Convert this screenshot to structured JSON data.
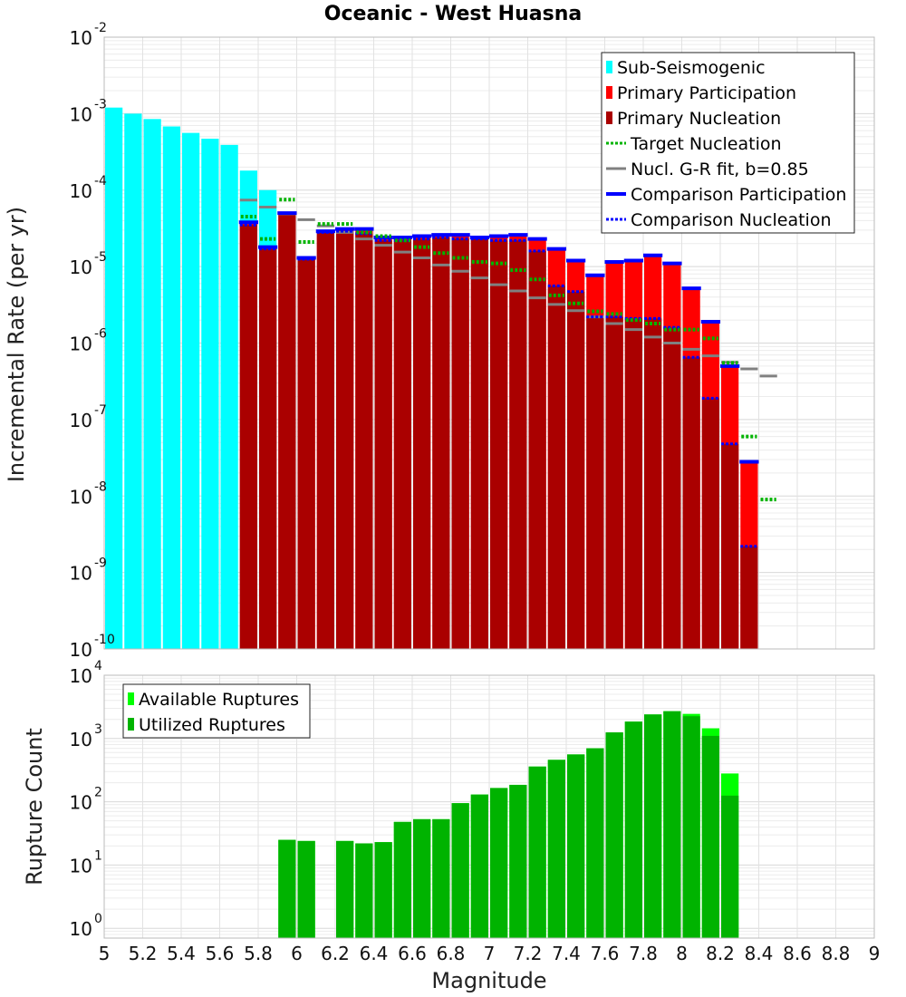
{
  "chart_data": [
    {
      "type": "bar",
      "title": "Oceanic - West Huasna",
      "xlabel": "",
      "ylabel": "Incremental Rate (per yr)",
      "xlim": [
        5,
        9
      ],
      "ylim": [
        1e-10,
        0.01
      ],
      "y_scale": "log",
      "y_ticks": [
        {
          "base": "10",
          "exp": "-10"
        },
        {
          "base": "10",
          "exp": "-9"
        },
        {
          "base": "10",
          "exp": "-8"
        },
        {
          "base": "10",
          "exp": "-7"
        },
        {
          "base": "10",
          "exp": "-6"
        },
        {
          "base": "10",
          "exp": "-5"
        },
        {
          "base": "10",
          "exp": "-4"
        },
        {
          "base": "10",
          "exp": "-3"
        },
        {
          "base": "10",
          "exp": "-2"
        }
      ],
      "legend": {
        "position": "top-right",
        "entries": [
          {
            "label": "Sub-Seismogenic",
            "color": "#00ffff",
            "style": "box"
          },
          {
            "label": "Primary Participation",
            "color": "#ff0000",
            "style": "box"
          },
          {
            "label": "Primary Nucleation",
            "color": "#aa0000",
            "style": "box"
          },
          {
            "label": "Target Nucleation",
            "color": "#00b300",
            "style": "dotted"
          },
          {
            "label": "Nucl. G-R fit, b=0.85",
            "color": "#808080",
            "style": "solid"
          },
          {
            "label": "Comparison Participation",
            "color": "#0000ff",
            "style": "solid-thick"
          },
          {
            "label": "Comparison Nucleation",
            "color": "#0000ff",
            "style": "dotted"
          }
        ]
      },
      "series": [
        {
          "name": "Sub-Seismogenic",
          "color": "#00ffff",
          "x": [
            5.05,
            5.15,
            5.25,
            5.35,
            5.45,
            5.55,
            5.65,
            5.75,
            5.85
          ],
          "values": [
            0.0012,
            0.001,
            0.00085,
            0.00068,
            0.00056,
            0.00047,
            0.00039,
            0.00018,
            0.0001
          ]
        },
        {
          "name": "Primary Participation",
          "color": "#ff0000",
          "x": [
            5.75,
            5.85,
            5.95,
            6.05,
            6.15,
            6.25,
            6.35,
            6.45,
            6.55,
            6.65,
            6.75,
            6.85,
            6.95,
            7.05,
            7.15,
            7.25,
            7.35,
            7.45,
            7.55,
            7.65,
            7.75,
            7.85,
            7.95,
            8.05,
            8.15,
            8.25,
            8.35
          ],
          "values": [
            3.8e-05,
            1.8e-05,
            5e-05,
            1.3e-05,
            2.9e-05,
            3.1e-05,
            3.1e-05,
            2.4e-05,
            2.4e-05,
            2.5e-05,
            2.6e-05,
            2.6e-05,
            2.4e-05,
            2.5e-05,
            2.6e-05,
            2.3e-05,
            1.7e-05,
            1.2e-05,
            7.7e-06,
            1.15e-05,
            1.2e-05,
            1.4e-05,
            1.1e-05,
            5.2e-06,
            1.9e-06,
            5e-07,
            2.8e-08
          ]
        },
        {
          "name": "Primary Nucleation",
          "color": "#aa0000",
          "x": [
            5.75,
            5.85,
            5.95,
            6.05,
            6.15,
            6.25,
            6.35,
            6.45,
            6.55,
            6.65,
            6.75,
            6.85,
            6.95,
            7.05,
            7.15,
            7.25,
            7.35,
            7.45,
            7.55,
            7.65,
            7.75,
            7.85,
            7.95,
            8.05,
            8.15,
            8.25,
            8.35
          ],
          "values": [
            3.5e-05,
            1.7e-05,
            5e-05,
            1.25e-05,
            2.8e-05,
            2.9e-05,
            2.7e-05,
            2.2e-05,
            2.2e-05,
            2.3e-05,
            2.4e-05,
            2.3e-05,
            2.3e-05,
            2.2e-05,
            2.2e-05,
            1.6e-05,
            5.6e-06,
            4.7e-06,
            2.2e-06,
            2.2e-06,
            2.1e-06,
            2.1e-06,
            1.6e-06,
            6.5e-07,
            1.9e-07,
            4.8e-08,
            2.2e-09
          ]
        },
        {
          "name": "Target Nucleation",
          "color": "#00b300",
          "x": [
            5.75,
            5.85,
            5.95,
            6.05,
            6.15,
            6.25,
            6.35,
            6.45,
            6.55,
            6.65,
            6.75,
            6.85,
            6.95,
            7.05,
            7.15,
            7.25,
            7.35,
            7.45,
            7.55,
            7.65,
            7.75,
            7.85,
            7.95,
            8.05,
            8.15,
            8.25,
            8.35,
            8.45
          ],
          "values": [
            4.5e-05,
            2.3e-05,
            7.5e-05,
            2.1e-05,
            3.6e-05,
            3.6e-05,
            2.8e-05,
            2.5e-05,
            2.2e-05,
            1.8e-05,
            1.5e-05,
            1.3e-05,
            1.15e-05,
            1.1e-05,
            9e-06,
            6.8e-06,
            4.2e-06,
            3.3e-06,
            2.6e-06,
            2.4e-06,
            2e-06,
            1.8e-06,
            1.5e-06,
            1.5e-06,
            1.15e-06,
            5.5e-07,
            6e-08,
            9e-09
          ]
        },
        {
          "name": "Nucl. G-R fit, b=0.85",
          "color": "#808080",
          "x": [
            5.75,
            5.85,
            5.95,
            6.05,
            6.15,
            6.25,
            6.35,
            6.45,
            6.55,
            6.65,
            6.75,
            6.85,
            6.95,
            7.05,
            7.15,
            7.25,
            7.35,
            7.45,
            7.55,
            7.65,
            7.75,
            7.85,
            7.95,
            8.05,
            8.15,
            8.25,
            8.35,
            8.45
          ],
          "values": [
            7.4e-05,
            6e-05,
            4.9e-05,
            4.1e-05,
            3.4e-05,
            2.8e-05,
            2.3e-05,
            1.9e-05,
            1.55e-05,
            1.3e-05,
            1.05e-05,
            8.7e-06,
            7.1e-06,
            5.8e-06,
            4.8e-06,
            3.9e-06,
            3.2e-06,
            2.65e-06,
            2.2e-06,
            1.8e-06,
            1.5e-06,
            1.2e-06,
            1e-06,
            8.3e-07,
            6.8e-07,
            5.6e-07,
            4.6e-07,
            3.7e-07
          ]
        },
        {
          "name": "Comparison Participation",
          "color": "#0000ff",
          "x": [
            5.75,
            5.85,
            5.95,
            6.05,
            6.15,
            6.25,
            6.35,
            6.45,
            6.55,
            6.65,
            6.75,
            6.85,
            6.95,
            7.05,
            7.15,
            7.25,
            7.35,
            7.45,
            7.55,
            7.65,
            7.75,
            7.85,
            7.95,
            8.05,
            8.15,
            8.25,
            8.35
          ],
          "values": [
            3.8e-05,
            1.8e-05,
            5e-05,
            1.3e-05,
            2.9e-05,
            3.1e-05,
            3.1e-05,
            2.4e-05,
            2.4e-05,
            2.5e-05,
            2.6e-05,
            2.6e-05,
            2.4e-05,
            2.5e-05,
            2.6e-05,
            2.3e-05,
            1.7e-05,
            1.2e-05,
            7.7e-06,
            1.15e-05,
            1.2e-05,
            1.4e-05,
            1.1e-05,
            5.2e-06,
            1.9e-06,
            5e-07,
            2.8e-08
          ]
        },
        {
          "name": "Comparison Nucleation",
          "color": "#0000ff",
          "x": [
            5.75,
            5.85,
            5.95,
            6.05,
            6.15,
            6.25,
            6.35,
            6.45,
            6.55,
            6.65,
            6.75,
            6.85,
            6.95,
            7.05,
            7.15,
            7.25,
            7.35,
            7.45,
            7.55,
            7.65,
            7.75,
            7.85,
            7.95,
            8.05,
            8.15,
            8.25,
            8.35
          ],
          "values": [
            3.5e-05,
            1.7e-05,
            5e-05,
            1.25e-05,
            2.8e-05,
            2.9e-05,
            2.7e-05,
            2.2e-05,
            2.2e-05,
            2.3e-05,
            2.4e-05,
            2.3e-05,
            2.3e-05,
            2.2e-05,
            2.2e-05,
            1.6e-05,
            5.6e-06,
            4.7e-06,
            2.2e-06,
            2.2e-06,
            2.1e-06,
            2.1e-06,
            1.6e-06,
            6.5e-07,
            1.9e-07,
            4.8e-08,
            2.2e-09
          ]
        }
      ]
    },
    {
      "type": "bar",
      "title": "",
      "xlabel": "Magnitude",
      "ylabel": "Rupture Count",
      "xlim": [
        5,
        9
      ],
      "ylim": [
        0.7,
        10000
      ],
      "y_scale": "log",
      "x_ticks": [
        "5",
        "5.2",
        "5.4",
        "5.6",
        "5.8",
        "6",
        "6.2",
        "6.4",
        "6.6",
        "6.8",
        "7",
        "7.2",
        "7.4",
        "7.6",
        "7.8",
        "8",
        "8.2",
        "8.4",
        "8.6",
        "8.8",
        "9"
      ],
      "y_ticks": [
        {
          "base": "10",
          "exp": "0"
        },
        {
          "base": "10",
          "exp": "1"
        },
        {
          "base": "10",
          "exp": "2"
        },
        {
          "base": "10",
          "exp": "3"
        },
        {
          "base": "10",
          "exp": "4"
        }
      ],
      "legend": {
        "position": "top-left",
        "entries": [
          {
            "label": "Available Ruptures",
            "color": "#00ff00",
            "style": "box"
          },
          {
            "label": "Utilized Ruptures",
            "color": "#00b300",
            "style": "box"
          }
        ]
      },
      "series": [
        {
          "name": "Available Ruptures",
          "color": "#00ff00",
          "x": [
            5.95,
            6.05,
            6.25,
            6.35,
            6.45,
            6.55,
            6.65,
            6.75,
            6.85,
            6.95,
            7.05,
            7.15,
            7.25,
            7.35,
            7.45,
            7.55,
            7.65,
            7.75,
            7.85,
            7.95,
            8.05,
            8.15,
            8.25
          ],
          "values": [
            25,
            24,
            24,
            22,
            23,
            48,
            53,
            53,
            95,
            130,
            165,
            185,
            360,
            460,
            560,
            700,
            1250,
            1850,
            2400,
            2700,
            2450,
            1450,
            280
          ]
        },
        {
          "name": "Utilized Ruptures",
          "color": "#00b300",
          "x": [
            5.95,
            6.05,
            6.25,
            6.35,
            6.45,
            6.55,
            6.65,
            6.75,
            6.85,
            6.95,
            7.05,
            7.15,
            7.25,
            7.35,
            7.45,
            7.55,
            7.65,
            7.75,
            7.85,
            7.95,
            8.05,
            8.15,
            8.25
          ],
          "values": [
            25,
            24,
            24,
            22,
            23,
            48,
            53,
            53,
            95,
            130,
            165,
            185,
            360,
            460,
            560,
            700,
            1250,
            1850,
            2400,
            2700,
            2250,
            1100,
            125
          ]
        }
      ]
    }
  ]
}
